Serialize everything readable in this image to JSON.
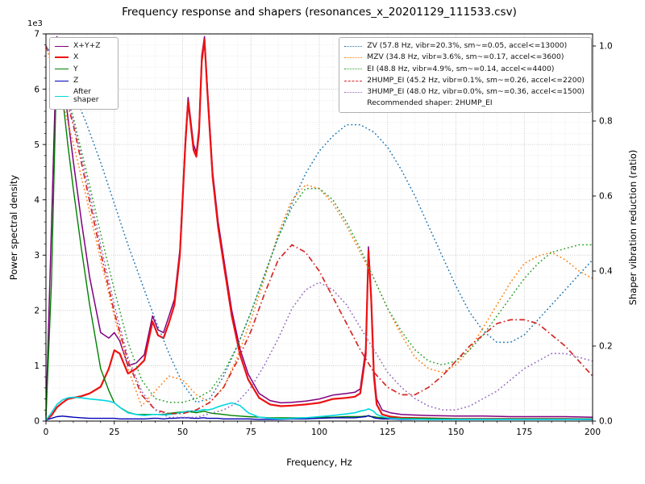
{
  "chart": {
    "title": "Frequency response and shapers (resonances_x_20201129_111533.csv)",
    "xlabel": "Frequency, Hz",
    "ylabel": "Power spectral density",
    "y2label": "Shaper vibration reduction (ratio)",
    "y_offset_text": "1e3",
    "x_ticks": [
      0,
      25,
      50,
      75,
      100,
      125,
      150,
      175,
      200
    ],
    "y_ticks": [
      0,
      1,
      2,
      3,
      4,
      5,
      6,
      7
    ],
    "y2_ticks": [
      "0.0",
      "0.2",
      "0.4",
      "0.6",
      "0.8",
      "1.0"
    ]
  },
  "legends": {
    "psd": [
      {
        "name": "xyz",
        "label": "X+Y+Z",
        "color": "#800080",
        "style": "solid",
        "thick": false
      },
      {
        "name": "x",
        "label": "X",
        "color": "#ee1111",
        "style": "solid",
        "thick": true
      },
      {
        "name": "y",
        "label": "Y",
        "color": "#008000",
        "style": "solid",
        "thick": false
      },
      {
        "name": "z",
        "label": "Z",
        "color": "#0000b8",
        "style": "solid",
        "thick": false
      },
      {
        "name": "after-shaper",
        "label": "After shaper",
        "color": "#00d8e0",
        "style": "solid",
        "thick": false
      }
    ],
    "shapers": {
      "entries": [
        {
          "name": "zv",
          "label": "ZV (57.8 Hz, vibr=20.3%, sm~=0.05, accel<=13000)",
          "color": "#1f77b4",
          "style": "dotted"
        },
        {
          "name": "mzv",
          "label": "MZV (34.8 Hz, vibr=3.6%, sm~=0.17, accel<=3600)",
          "color": "#ff7f0e",
          "style": "dotted"
        },
        {
          "name": "ei",
          "label": "EI (48.8 Hz, vibr=4.9%, sm~=0.14, accel<=4400)",
          "color": "#2ca02c",
          "style": "dotted"
        },
        {
          "name": "2hump-ei",
          "label": "2HUMP_EI (45.2 Hz, vibr=0.1%, sm~=0.26, accel<=2200)",
          "color": "#d62728",
          "style": "dashdot"
        },
        {
          "name": "3hump-ei",
          "label": "3HUMP_EI (48.0 Hz, vibr=0.0%, sm~=0.36, accel<=1500)",
          "color": "#9467bd",
          "style": "dotted"
        }
      ],
      "note": "Recommended shaper: 2HUMP_EI"
    }
  },
  "chart_data": {
    "type": "line",
    "title": "Frequency response and shapers (resonances_x_20201129_111533.csv)",
    "xlabel": "Frequency, Hz",
    "ylabel_left": "Power spectral density (x1e3)",
    "ylabel_right": "Shaper vibration reduction (ratio)",
    "x_range": [
      0,
      200
    ],
    "y_left_range_1e3": [
      0,
      7
    ],
    "y_right_range": [
      0,
      1.0
    ],
    "grid": "both major and minor, dotted gray",
    "legend_positions": [
      "upper left",
      "upper right"
    ],
    "psd_series": {
      "freq_hz": [
        0,
        2,
        4,
        6,
        8,
        10,
        13,
        16,
        20,
        23,
        25,
        27,
        30,
        33,
        36,
        39,
        41,
        43,
        45,
        47,
        49,
        51,
        52,
        54,
        55,
        56,
        57,
        58,
        59,
        61,
        63,
        65,
        68,
        71,
        74,
        78,
        82,
        86,
        90,
        95,
        100,
        105,
        110,
        113,
        115,
        117,
        118,
        119,
        120,
        121,
        123,
        126,
        130,
        140,
        150,
        160,
        170,
        180,
        190,
        200
      ],
      "units": "1e3",
      "series": [
        {
          "name": "X+Y+Z",
          "color": "#800080",
          "style": "solid",
          "width": 1.5,
          "values": [
            0.1,
            3.5,
            6.95,
            6.3,
            5.5,
            4.7,
            3.6,
            2.6,
            1.6,
            1.5,
            1.6,
            1.45,
            1.0,
            1.05,
            1.2,
            1.9,
            1.65,
            1.6,
            1.9,
            2.2,
            3.1,
            5.1,
            5.85,
            5.0,
            4.85,
            5.3,
            6.6,
            6.95,
            6.1,
            4.5,
            3.6,
            2.95,
            2.0,
            1.3,
            0.85,
            0.5,
            0.37,
            0.33,
            0.34,
            0.36,
            0.4,
            0.47,
            0.5,
            0.52,
            0.58,
            1.3,
            3.15,
            2.3,
            0.9,
            0.4,
            0.2,
            0.15,
            0.12,
            0.1,
            0.09,
            0.09,
            0.08,
            0.08,
            0.08,
            0.07
          ]
        },
        {
          "name": "X",
          "color": "#ee1111",
          "style": "solid",
          "width": 2.2,
          "values": [
            0.02,
            0.1,
            0.25,
            0.33,
            0.4,
            0.42,
            0.45,
            0.5,
            0.62,
            0.95,
            1.28,
            1.22,
            0.86,
            0.95,
            1.1,
            1.8,
            1.55,
            1.5,
            1.78,
            2.1,
            3.0,
            5.0,
            5.78,
            4.9,
            4.78,
            5.2,
            6.5,
            6.9,
            6.0,
            4.4,
            3.5,
            2.85,
            1.9,
            1.2,
            0.75,
            0.42,
            0.3,
            0.27,
            0.28,
            0.3,
            0.33,
            0.4,
            0.42,
            0.44,
            0.5,
            1.2,
            3.08,
            2.2,
            0.8,
            0.3,
            0.12,
            0.08,
            0.06,
            0.05,
            0.04,
            0.04,
            0.04,
            0.04,
            0.04,
            0.03
          ]
        },
        {
          "name": "Y",
          "color": "#008000",
          "style": "solid",
          "width": 1.4,
          "values": [
            0.05,
            2.5,
            6.6,
            5.9,
            5.0,
            4.2,
            3.1,
            2.1,
            0.95,
            0.55,
            0.33,
            0.25,
            0.16,
            0.12,
            0.12,
            0.12,
            0.12,
            0.12,
            0.14,
            0.15,
            0.16,
            0.17,
            0.17,
            0.16,
            0.15,
            0.16,
            0.17,
            0.18,
            0.16,
            0.14,
            0.13,
            0.12,
            0.1,
            0.09,
            0.08,
            0.07,
            0.06,
            0.06,
            0.06,
            0.06,
            0.07,
            0.07,
            0.08,
            0.08,
            0.08,
            0.09,
            0.09,
            0.08,
            0.08,
            0.07,
            0.06,
            0.06,
            0.05,
            0.05,
            0.04,
            0.04,
            0.04,
            0.04,
            0.04,
            0.04
          ]
        },
        {
          "name": "Z",
          "color": "#0000b8",
          "style": "solid",
          "width": 1.4,
          "values": [
            0.02,
            0.05,
            0.08,
            0.09,
            0.08,
            0.07,
            0.06,
            0.05,
            0.05,
            0.05,
            0.05,
            0.04,
            0.04,
            0.04,
            0.04,
            0.05,
            0.05,
            0.04,
            0.05,
            0.05,
            0.06,
            0.06,
            0.06,
            0.05,
            0.05,
            0.05,
            0.06,
            0.06,
            0.05,
            0.05,
            0.05,
            0.04,
            0.04,
            0.04,
            0.04,
            0.03,
            0.03,
            0.03,
            0.04,
            0.04,
            0.05,
            0.06,
            0.06,
            0.06,
            0.07,
            0.08,
            0.1,
            0.08,
            0.06,
            0.05,
            0.04,
            0.04,
            0.03,
            0.03,
            0.03,
            0.03,
            0.03,
            0.03,
            0.03,
            0.03
          ]
        },
        {
          "name": "After shaper",
          "color": "#00d8e0",
          "style": "solid",
          "width": 1.6,
          "values": [
            0.02,
            0.15,
            0.3,
            0.38,
            0.42,
            0.43,
            0.42,
            0.4,
            0.38,
            0.36,
            0.33,
            0.25,
            0.15,
            0.12,
            0.1,
            0.12,
            0.12,
            0.11,
            0.12,
            0.13,
            0.15,
            0.17,
            0.18,
            0.18,
            0.18,
            0.19,
            0.2,
            0.21,
            0.2,
            0.22,
            0.26,
            0.29,
            0.33,
            0.28,
            0.15,
            0.07,
            0.05,
            0.04,
            0.05,
            0.06,
            0.08,
            0.1,
            0.13,
            0.15,
            0.18,
            0.2,
            0.22,
            0.2,
            0.17,
            0.12,
            0.08,
            0.05,
            0.04,
            0.03,
            0.03,
            0.03,
            0.03,
            0.03,
            0.03,
            0.03
          ]
        }
      ]
    },
    "shaper_series": {
      "axis": "right",
      "freq_hz": [
        0,
        5,
        10,
        15,
        20,
        25,
        30,
        35,
        40,
        45,
        50,
        55,
        60,
        65,
        70,
        75,
        80,
        85,
        90,
        95,
        100,
        105,
        110,
        115,
        120,
        125,
        130,
        135,
        140,
        145,
        150,
        155,
        160,
        165,
        170,
        175,
        180,
        185,
        190,
        195,
        200
      ],
      "units": "vibration reduction ratio",
      "series": [
        {
          "name": "ZV",
          "color": "#1f77b4",
          "style": "dotted",
          "width": 1.5,
          "values": [
            1.0,
            0.95,
            0.88,
            0.79,
            0.69,
            0.58,
            0.47,
            0.37,
            0.27,
            0.18,
            0.1,
            0.05,
            0.06,
            0.12,
            0.2,
            0.29,
            0.39,
            0.49,
            0.58,
            0.66,
            0.72,
            0.76,
            0.79,
            0.79,
            0.77,
            0.73,
            0.67,
            0.6,
            0.52,
            0.44,
            0.36,
            0.29,
            0.24,
            0.21,
            0.21,
            0.23,
            0.27,
            0.31,
            0.35,
            0.39,
            0.43
          ]
        },
        {
          "name": "MZV",
          "color": "#ff7f0e",
          "style": "dotted",
          "width": 1.5,
          "values": [
            1.0,
            0.88,
            0.74,
            0.59,
            0.43,
            0.28,
            0.14,
            0.04,
            0.08,
            0.12,
            0.11,
            0.07,
            0.05,
            0.09,
            0.17,
            0.27,
            0.38,
            0.5,
            0.59,
            0.63,
            0.62,
            0.58,
            0.52,
            0.45,
            0.38,
            0.3,
            0.23,
            0.17,
            0.14,
            0.13,
            0.15,
            0.19,
            0.25,
            0.31,
            0.37,
            0.42,
            0.44,
            0.45,
            0.43,
            0.4,
            0.38
          ]
        },
        {
          "name": "EI",
          "color": "#2ca02c",
          "style": "dotted",
          "width": 1.5,
          "values": [
            1.0,
            0.93,
            0.81,
            0.66,
            0.5,
            0.35,
            0.21,
            0.11,
            0.06,
            0.05,
            0.05,
            0.06,
            0.08,
            0.13,
            0.2,
            0.29,
            0.39,
            0.49,
            0.57,
            0.62,
            0.62,
            0.59,
            0.53,
            0.46,
            0.38,
            0.3,
            0.24,
            0.19,
            0.16,
            0.15,
            0.16,
            0.19,
            0.23,
            0.28,
            0.33,
            0.38,
            0.42,
            0.45,
            0.46,
            0.47,
            0.47
          ]
        },
        {
          "name": "2HUMP_EI",
          "color": "#d62728",
          "style": "dashdot",
          "width": 1.7,
          "values": [
            1.0,
            0.92,
            0.79,
            0.62,
            0.45,
            0.29,
            0.16,
            0.07,
            0.03,
            0.02,
            0.02,
            0.03,
            0.05,
            0.09,
            0.16,
            0.24,
            0.34,
            0.43,
            0.47,
            0.45,
            0.4,
            0.33,
            0.26,
            0.19,
            0.13,
            0.09,
            0.07,
            0.07,
            0.09,
            0.12,
            0.16,
            0.2,
            0.23,
            0.26,
            0.27,
            0.27,
            0.26,
            0.23,
            0.2,
            0.16,
            0.12
          ]
        },
        {
          "name": "3HUMP_EI",
          "color": "#9467bd",
          "style": "dotted",
          "width": 1.5,
          "values": [
            1.0,
            0.93,
            0.8,
            0.64,
            0.47,
            0.31,
            0.17,
            0.08,
            0.03,
            0.01,
            0.01,
            0.01,
            0.02,
            0.03,
            0.05,
            0.09,
            0.15,
            0.22,
            0.3,
            0.35,
            0.37,
            0.35,
            0.31,
            0.25,
            0.19,
            0.13,
            0.09,
            0.06,
            0.04,
            0.03,
            0.03,
            0.04,
            0.06,
            0.08,
            0.11,
            0.14,
            0.16,
            0.18,
            0.18,
            0.17,
            0.16
          ]
        }
      ]
    },
    "recommended_shaper": "2HUMP_EI"
  }
}
